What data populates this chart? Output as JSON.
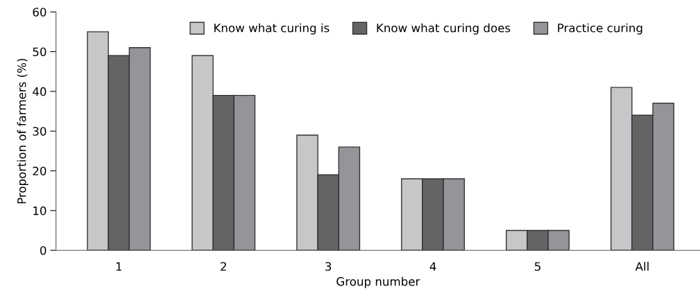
{
  "chart_data": {
    "type": "bar",
    "xlabel": "Group number",
    "ylabel": "Proportion of farmers (%)",
    "categories": [
      "1",
      "2",
      "3",
      "4",
      "5",
      "All"
    ],
    "series": [
      {
        "name": "Know what curing is",
        "color": "#c6c7c9",
        "values": [
          55,
          49,
          29,
          18,
          5,
          41
        ]
      },
      {
        "name": "Know what curing does",
        "color": "#636466",
        "values": [
          49,
          39,
          19,
          18,
          5,
          34
        ]
      },
      {
        "name": "Practice curing",
        "color": "#939598",
        "values": [
          51,
          39,
          26,
          18,
          5,
          37
        ]
      }
    ],
    "ylim": [
      0,
      60
    ],
    "yticks": [
      0,
      10,
      20,
      30,
      40,
      50,
      60
    ],
    "grid": false,
    "legend": "top"
  }
}
